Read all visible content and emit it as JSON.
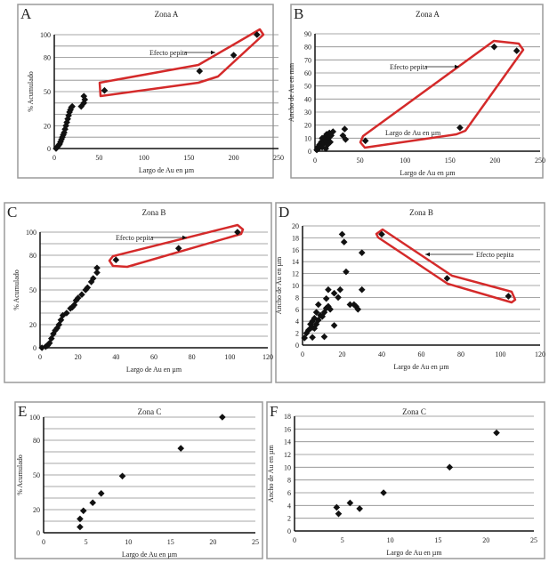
{
  "chart_data": [
    {
      "panel": "A",
      "type": "scatter",
      "title": "Zona A",
      "xlabel": "Largo de Au en µm",
      "ylabel": "% Acumulado",
      "xlim": [
        0,
        250
      ],
      "ylim": [
        0,
        100
      ],
      "xticks": [
        0,
        50,
        100,
        150,
        200,
        250
      ],
      "yticks": [
        0,
        20,
        50,
        80,
        100
      ],
      "grid": true,
      "grid_step": 10,
      "marker": "diamond",
      "marker_color": "#111111",
      "highlight_color": "#d42a2a",
      "annotation": "Efecto pepita",
      "points": [
        [
          2,
          0
        ],
        [
          3,
          1
        ],
        [
          4,
          2
        ],
        [
          5,
          3
        ],
        [
          6,
          4
        ],
        [
          7,
          6
        ],
        [
          8,
          8
        ],
        [
          9,
          10
        ],
        [
          10,
          12
        ],
        [
          11,
          14
        ],
        [
          12,
          17
        ],
        [
          13,
          20
        ],
        [
          14,
          23
        ],
        [
          15,
          26
        ],
        [
          16,
          29
        ],
        [
          17,
          32
        ],
        [
          18,
          34
        ],
        [
          19,
          36
        ],
        [
          20,
          37
        ],
        [
          30,
          37
        ],
        [
          33,
          40
        ],
        [
          34,
          43
        ],
        [
          33,
          46
        ],
        [
          56,
          51
        ],
        [
          162,
          68
        ],
        [
          200,
          82
        ],
        [
          226,
          100
        ]
      ]
    },
    {
      "panel": "B",
      "type": "scatter",
      "title": "Zona A",
      "xlabel": "Largo de Au en µm",
      "ylabel": "Ancho de Au en mm",
      "xlim": [
        0,
        250
      ],
      "ylim": [
        0,
        90
      ],
      "xticks": [
        0,
        50,
        100,
        150,
        200,
        250
      ],
      "yticks": [
        0,
        10,
        20,
        30,
        40,
        50,
        60,
        70,
        80,
        90
      ],
      "grid": true,
      "grid_step": 10,
      "marker": "diamond",
      "marker_color": "#111111",
      "highlight_color": "#d42a2a",
      "annotation": "Efecto pepita",
      "annotation2": "Largo de Au en µm",
      "points": [
        [
          2,
          1
        ],
        [
          3,
          3
        ],
        [
          4,
          2
        ],
        [
          5,
          5
        ],
        [
          6,
          4
        ],
        [
          7,
          7
        ],
        [
          8,
          3
        ],
        [
          9,
          9
        ],
        [
          10,
          6
        ],
        [
          11,
          11
        ],
        [
          12,
          8
        ],
        [
          13,
          13
        ],
        [
          14,
          5
        ],
        [
          15,
          10
        ],
        [
          16,
          14
        ],
        [
          17,
          7
        ],
        [
          18,
          12
        ],
        [
          12,
          2
        ],
        [
          8,
          10
        ],
        [
          20,
          15
        ],
        [
          33,
          17
        ],
        [
          31,
          12
        ],
        [
          34,
          9
        ],
        [
          56,
          8
        ],
        [
          161,
          18
        ],
        [
          199,
          80
        ],
        [
          224,
          77
        ]
      ]
    },
    {
      "panel": "C",
      "type": "scatter",
      "title": "Zona B",
      "xlabel": "Largo de Au en µm",
      "ylabel": "% Acumulado",
      "xlim": [
        0,
        120
      ],
      "ylim": [
        0,
        100
      ],
      "xticks": [
        0,
        20,
        40,
        60,
        80,
        100,
        120
      ],
      "yticks": [
        0,
        20,
        50,
        80,
        100
      ],
      "grid": true,
      "grid_step": 10,
      "marker": "diamond",
      "marker_color": "#111111",
      "highlight_color": "#d42a2a",
      "annotation": "Efecto pepita",
      "points": [
        [
          1,
          0
        ],
        [
          3,
          1
        ],
        [
          4,
          2
        ],
        [
          5,
          4
        ],
        [
          6,
          8
        ],
        [
          7,
          12
        ],
        [
          8,
          15
        ],
        [
          9,
          17
        ],
        [
          10,
          20
        ],
        [
          11,
          24
        ],
        [
          12,
          28
        ],
        [
          14,
          30
        ],
        [
          16,
          34
        ],
        [
          17,
          35
        ],
        [
          18,
          37
        ],
        [
          19,
          41
        ],
        [
          20,
          43
        ],
        [
          22,
          46
        ],
        [
          24,
          50
        ],
        [
          25,
          52
        ],
        [
          27,
          57
        ],
        [
          28,
          60
        ],
        [
          30,
          65
        ],
        [
          30,
          69
        ],
        [
          40,
          76
        ],
        [
          73,
          86
        ],
        [
          104,
          100
        ]
      ]
    },
    {
      "panel": "D",
      "type": "scatter",
      "title": "Zona B",
      "xlabel": "Largo de Au en µm",
      "ylabel": "Ancho de Au en µm",
      "xlim": [
        0,
        120
      ],
      "ylim": [
        0,
        20
      ],
      "xticks": [
        0,
        20,
        40,
        60,
        80,
        100,
        120
      ],
      "yticks": [
        0,
        2,
        4,
        6,
        8,
        10,
        12,
        14,
        16,
        18,
        20
      ],
      "grid": true,
      "grid_step": 2,
      "marker": "diamond",
      "marker_color": "#111111",
      "highlight_color": "#d42a2a",
      "annotation": "Efecto pepita",
      "points": [
        [
          1,
          1.2
        ],
        [
          2,
          2
        ],
        [
          3,
          2.5
        ],
        [
          4,
          3.5
        ],
        [
          4,
          2.8
        ],
        [
          5,
          4
        ],
        [
          5,
          3
        ],
        [
          6,
          4.5
        ],
        [
          6,
          2.8
        ],
        [
          7,
          5.5
        ],
        [
          7,
          3.5
        ],
        [
          8,
          6.8
        ],
        [
          8,
          4.2
        ],
        [
          9,
          5
        ],
        [
          10,
          4.8
        ],
        [
          11,
          5.5
        ],
        [
          12,
          6.2
        ],
        [
          12,
          7.8
        ],
        [
          13,
          6.5
        ],
        [
          13,
          9.3
        ],
        [
          14,
          6
        ],
        [
          16,
          8.7
        ],
        [
          16,
          3.3
        ],
        [
          18,
          8
        ],
        [
          19,
          9.3
        ],
        [
          20,
          18.6
        ],
        [
          21,
          17.3
        ],
        [
          22,
          12.3
        ],
        [
          24,
          6.8
        ],
        [
          26,
          6.8
        ],
        [
          27,
          6.5
        ],
        [
          28,
          6
        ],
        [
          30,
          15.5
        ],
        [
          30,
          9.3
        ],
        [
          5,
          1.3
        ],
        [
          11,
          1.4
        ],
        [
          40,
          18.6
        ],
        [
          73,
          11.2
        ],
        [
          104,
          8.2
        ]
      ]
    },
    {
      "panel": "E",
      "type": "scatter",
      "title": "Zona C",
      "xlabel": "Largo de Au en µm",
      "ylabel": "% Acumulado",
      "xlim": [
        0,
        25
      ],
      "ylim": [
        0,
        100
      ],
      "xticks": [
        0,
        5,
        10,
        15,
        20,
        25
      ],
      "yticks": [
        0,
        20,
        50,
        80,
        100
      ],
      "grid": true,
      "grid_step": 10,
      "marker": "diamond",
      "marker_color": "#111111",
      "points": [
        [
          4.3,
          5
        ],
        [
          4.3,
          12
        ],
        [
          4.7,
          19
        ],
        [
          5.8,
          26
        ],
        [
          6.8,
          34
        ],
        [
          9.3,
          49
        ],
        [
          16.2,
          73
        ],
        [
          21.1,
          100
        ]
      ]
    },
    {
      "panel": "F",
      "type": "scatter",
      "title": "Zona C",
      "xlabel": "Largo de Au en µm",
      "ylabel": "Ancho de Au en µm",
      "xlim": [
        0,
        25
      ],
      "ylim": [
        0,
        18
      ],
      "xticks": [
        0,
        5,
        10,
        15,
        20,
        25
      ],
      "yticks": [
        0,
        2,
        4,
        6,
        8,
        10,
        12,
        14,
        16,
        18
      ],
      "grid": true,
      "grid_step": 2,
      "marker": "diamond",
      "marker_color": "#111111",
      "points": [
        [
          4.4,
          3.7
        ],
        [
          4.6,
          2.7
        ],
        [
          5.8,
          4.4
        ],
        [
          6.8,
          3.5
        ],
        [
          9.3,
          6
        ],
        [
          16.2,
          10
        ],
        [
          21.1,
          15.4
        ]
      ]
    }
  ]
}
